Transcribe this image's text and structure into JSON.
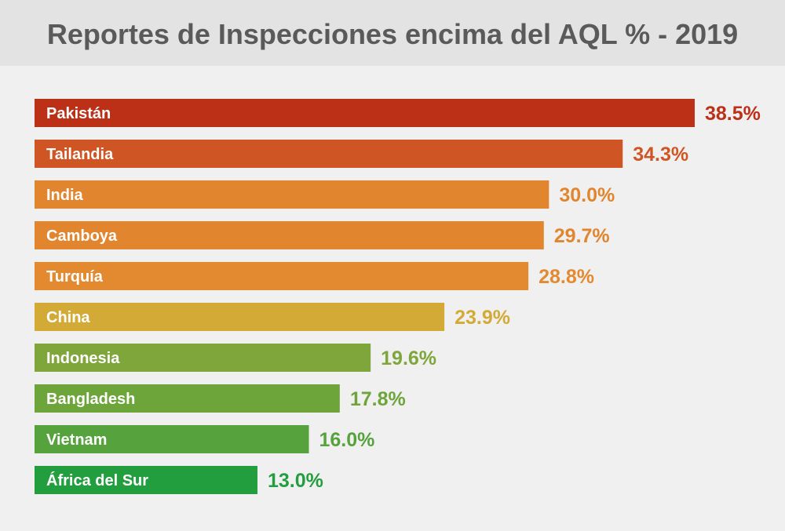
{
  "chart_data": {
    "type": "bar",
    "orientation": "horizontal",
    "title": "Reportes de Inspecciones encima del AQL % - 2019",
    "categories": [
      "Pakistán",
      "Tailandia",
      "India",
      "Camboya",
      "Turquía",
      "China",
      "Indonesia",
      "Bangladesh",
      "Vietnam",
      "África del Sur"
    ],
    "values": [
      38.5,
      34.3,
      30.0,
      29.7,
      28.8,
      23.9,
      19.6,
      17.8,
      16.0,
      13.0
    ],
    "value_labels": [
      "38.5%",
      "34.3%",
      "30.0%",
      "29.7%",
      "28.8%",
      "23.9%",
      "19.6%",
      "17.8%",
      "16.0%",
      "13.0%"
    ],
    "colors": [
      "#bd3018",
      "#cf5624",
      "#e1852e",
      "#e1852e",
      "#e38a30",
      "#d2aa35",
      "#7fa63a",
      "#6ea53a",
      "#56a33d",
      "#229e3f"
    ],
    "xlim": [
      0,
      38.5
    ],
    "grid": false,
    "legend": "none"
  }
}
